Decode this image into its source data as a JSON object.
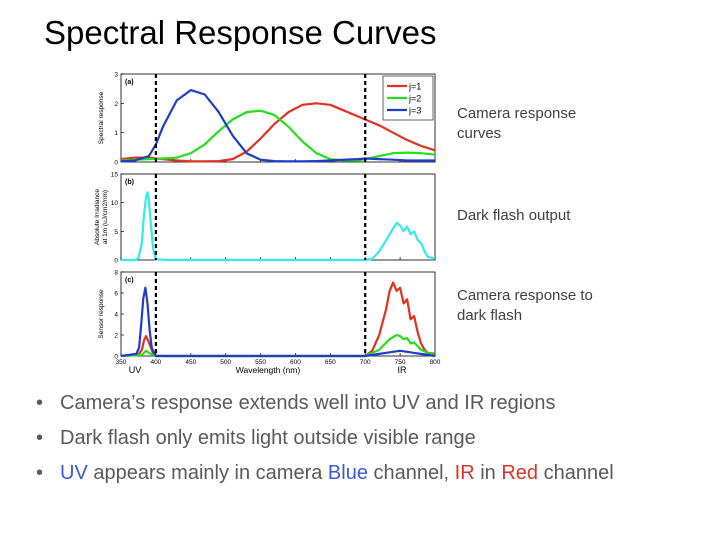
{
  "title": "Spectral Response Curves",
  "colors": {
    "red": "#e0321e",
    "green": "#22e01a",
    "blue": "#1e3cc8",
    "cyan": "#33eaea",
    "uv_word": "#3b5bd6",
    "ir_word": "#d8352a"
  },
  "captions": {
    "a": "Camera response curves",
    "b": "Dark flash output",
    "c": "Camera response to dark flash"
  },
  "bullets": {
    "b1": "Camera’s response extends well into UV and IR regions",
    "b2": "Dark flash only emits light outside visible range",
    "b3_uv": "UV",
    "b3_t1": " appears mainly in camera ",
    "b3_blue": "Blue",
    "b3_t2": " channel, ",
    "b3_ir": "IR",
    "b3_t3": " in ",
    "b3_red": "Red",
    "b3_t4": " channel"
  },
  "chart_data": [
    {
      "type": "line",
      "panel_label": "(a)",
      "ylabel": "Spectral response",
      "xlim": [
        350,
        800
      ],
      "ylim": [
        0,
        3
      ],
      "yticks": [
        0,
        1,
        2,
        3
      ],
      "vlines": [
        400,
        700
      ],
      "legend": [
        "j=1",
        "j=2",
        "j=3"
      ],
      "legend_position": "top-right",
      "series": [
        {
          "name": "j=1",
          "color": "red",
          "x": [
            350,
            370,
            390,
            410,
            430,
            450,
            470,
            490,
            510,
            530,
            550,
            570,
            590,
            610,
            630,
            650,
            670,
            690,
            700,
            720,
            740,
            760,
            780,
            800
          ],
          "y": [
            0.1,
            0.15,
            0.15,
            0.1,
            0.05,
            0.02,
            0.02,
            0.03,
            0.1,
            0.35,
            0.8,
            1.3,
            1.7,
            1.95,
            2.0,
            1.95,
            1.75,
            1.55,
            1.45,
            1.25,
            1.0,
            0.75,
            0.55,
            0.4
          ]
        },
        {
          "name": "j=2",
          "color": "green",
          "x": [
            350,
            370,
            390,
            410,
            430,
            450,
            470,
            490,
            510,
            530,
            550,
            570,
            590,
            610,
            630,
            650,
            670,
            690,
            700,
            720,
            740,
            760,
            780,
            800
          ],
          "y": [
            0.05,
            0.08,
            0.1,
            0.12,
            0.15,
            0.3,
            0.6,
            1.05,
            1.45,
            1.7,
            1.75,
            1.6,
            1.2,
            0.7,
            0.3,
            0.1,
            0.05,
            0.05,
            0.1,
            0.2,
            0.3,
            0.32,
            0.3,
            0.25
          ]
        },
        {
          "name": "j=3",
          "color": "blue",
          "x": [
            350,
            370,
            390,
            400,
            410,
            430,
            450,
            470,
            490,
            510,
            530,
            550,
            570,
            590,
            610,
            630,
            650,
            670,
            690,
            700,
            720,
            740,
            760,
            780,
            800
          ],
          "y": [
            0.02,
            0.05,
            0.2,
            0.6,
            1.2,
            2.1,
            2.45,
            2.3,
            1.7,
            0.9,
            0.3,
            0.08,
            0.03,
            0.02,
            0.02,
            0.03,
            0.05,
            0.08,
            0.1,
            0.12,
            0.1,
            0.08,
            0.05,
            0.05,
            0.05
          ]
        }
      ]
    },
    {
      "type": "line",
      "panel_label": "(b)",
      "ylabel": "Absolute Irradiance at 1m (uJ/cm2/nm)",
      "xlim": [
        350,
        800
      ],
      "ylim": [
        0,
        15
      ],
      "yticks": [
        0,
        5,
        10,
        15
      ],
      "vlines": [
        400,
        700
      ],
      "series": [
        {
          "color": "cyan",
          "x": [
            350,
            370,
            375,
            380,
            383,
            386,
            388,
            390,
            393,
            396,
            400,
            420,
            500,
            600,
            700,
            710,
            720,
            730,
            740,
            745,
            750,
            755,
            760,
            765,
            770,
            775,
            780,
            785,
            790,
            800
          ],
          "y": [
            0,
            0,
            0.3,
            3,
            8,
            11,
            11.8,
            10.5,
            6,
            2,
            0.1,
            0,
            0,
            0,
            0,
            0.2,
            1.5,
            3.5,
            5.5,
            6.5,
            6,
            5,
            5.8,
            4.5,
            5,
            3.5,
            3,
            1.5,
            0.5,
            0.3
          ]
        }
      ]
    },
    {
      "type": "line",
      "panel_label": "(c)",
      "ylabel": "Sensor response",
      "xlabel": "Wavelength (nm)",
      "xlim": [
        350,
        800
      ],
      "ylim": [
        0,
        8
      ],
      "yticks": [
        0,
        2,
        4,
        6,
        8
      ],
      "xticks": [
        350,
        400,
        450,
        500,
        550,
        600,
        650,
        700,
        750,
        800
      ],
      "region_labels": [
        "UV",
        "IR"
      ],
      "vlines": [
        400,
        700
      ],
      "series": [
        {
          "color": "red",
          "x": [
            350,
            375,
            380,
            383,
            386,
            390,
            395,
            400,
            500,
            600,
            700,
            710,
            720,
            730,
            735,
            740,
            745,
            750,
            755,
            760,
            765,
            770,
            775,
            780,
            785,
            790,
            800
          ],
          "y": [
            0,
            0.1,
            0.6,
            1.5,
            1.9,
            1.3,
            0.4,
            0,
            0,
            0,
            0,
            0.5,
            2,
            4.5,
            6.2,
            7,
            6.2,
            6.5,
            5,
            5.4,
            3.5,
            3.8,
            2.3,
            1.2,
            0.6,
            0.3,
            0.2
          ]
        },
        {
          "color": "green",
          "x": [
            350,
            380,
            386,
            390,
            400,
            500,
            600,
            700,
            720,
            735,
            745,
            750,
            755,
            760,
            765,
            770,
            780,
            790,
            800
          ],
          "y": [
            0,
            0.1,
            0.5,
            0.3,
            0,
            0,
            0,
            0,
            0.6,
            1.6,
            2.0,
            1.9,
            1.6,
            1.7,
            1.2,
            1.3,
            0.6,
            0.3,
            0.1
          ]
        },
        {
          "color": "blue",
          "x": [
            350,
            372,
            376,
            379,
            382,
            385,
            388,
            391,
            394,
            398,
            400,
            500,
            600,
            700,
            720,
            740,
            750,
            760,
            770,
            780,
            790,
            800
          ],
          "y": [
            0,
            0.2,
            0.8,
            3,
            5.5,
            6.5,
            5,
            2.5,
            0.8,
            0.2,
            0,
            0,
            0,
            0,
            0.2,
            0.4,
            0.5,
            0.4,
            0.3,
            0.2,
            0.1,
            0
          ]
        }
      ]
    }
  ]
}
